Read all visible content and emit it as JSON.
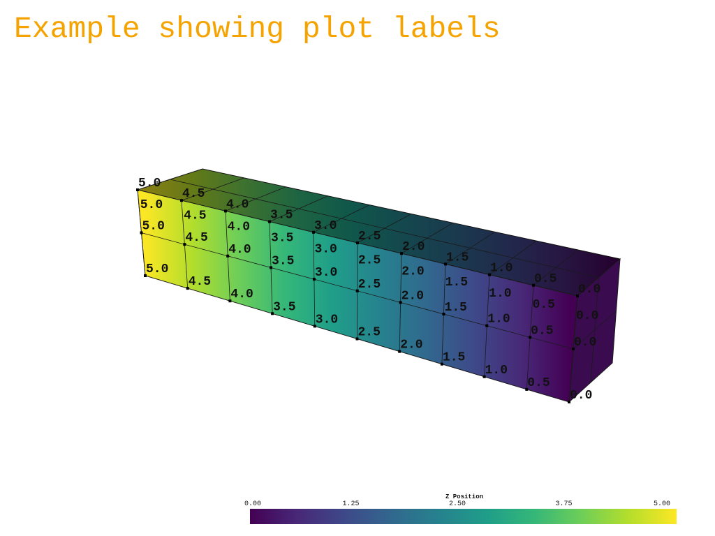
{
  "title": "Example showing plot labels",
  "scalar_name": "Z Position",
  "colorbar": {
    "ticks": [
      "0.00",
      "1.25",
      "2.50",
      "3.75",
      "5.00"
    ],
    "range": [
      0,
      5
    ],
    "colormap": "viridis"
  },
  "grid": {
    "columns": [
      5.0,
      4.5,
      4.0,
      3.5,
      3.0,
      2.5,
      2.0,
      1.5,
      1.0,
      0.5,
      0.0
    ],
    "label_rows": [
      "top-back",
      "top-front",
      "middle-front",
      "bottom-front"
    ]
  },
  "labels": {
    "col_0": "5.0",
    "col_1": "4.5",
    "col_2": "4.0",
    "col_3": "3.5",
    "col_4": "3.0",
    "col_5": "2.5",
    "col_6": "2.0",
    "col_7": "1.5",
    "col_8": "1.0",
    "col_9": "0.5",
    "col_10": "0.0"
  },
  "colors": {
    "title": "#f5a300",
    "edges": "#1a1a1a",
    "background": "#ffffff"
  }
}
